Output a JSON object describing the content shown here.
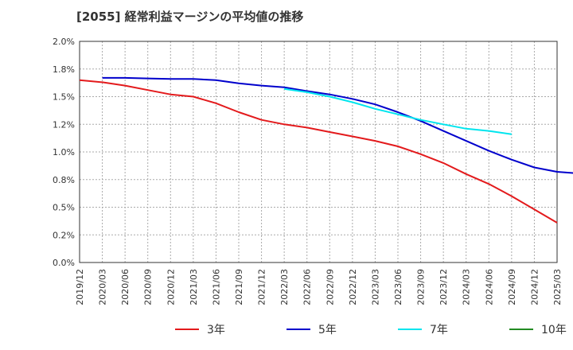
{
  "chart_data": {
    "type": "line",
    "title": "[2055]  経常利益マージンの平均値の推移",
    "xlabel": "",
    "ylabel": "",
    "ylim": [
      0,
      2.0
    ],
    "y_tick_labels": [
      "0.0%",
      "0.2%",
      "0.5%",
      "0.8%",
      "1.0%",
      "1.2%",
      "1.5%",
      "1.8%",
      "2.0%"
    ],
    "x_tick_labels": [
      "2019/12",
      "2020/03",
      "2020/06",
      "2020/09",
      "2020/12",
      "2021/03",
      "2021/06",
      "2021/09",
      "2021/12",
      "2022/03",
      "2022/06",
      "2022/09",
      "2022/12",
      "2023/03",
      "2023/06",
      "2023/09",
      "2023/12",
      "2024/03",
      "2024/06",
      "2024/09",
      "2024/12",
      "2025/03"
    ],
    "grid": true,
    "legend_position": "bottom",
    "series": [
      {
        "name": "3年",
        "color": "#e31a1c",
        "points": [
          [
            "2019/12",
            1.65
          ],
          [
            "2020/03",
            1.63
          ],
          [
            "2020/06",
            1.6
          ],
          [
            "2020/09",
            1.56
          ],
          [
            "2020/12",
            1.52
          ],
          [
            "2021/03",
            1.5
          ],
          [
            "2021/06",
            1.44
          ],
          [
            "2021/09",
            1.36
          ],
          [
            "2021/12",
            1.29
          ],
          [
            "2022/03",
            1.25
          ],
          [
            "2022/06",
            1.22
          ],
          [
            "2022/09",
            1.18
          ],
          [
            "2022/12",
            1.14
          ],
          [
            "2023/03",
            1.1
          ],
          [
            "2023/06",
            1.05
          ],
          [
            "2023/09",
            0.98
          ],
          [
            "2023/12",
            0.9
          ],
          [
            "2024/03",
            0.8
          ],
          [
            "2024/06",
            0.71
          ],
          [
            "2024/09",
            0.6
          ],
          [
            "2024/12",
            0.48
          ],
          [
            "2025/03",
            0.36
          ]
        ]
      },
      {
        "name": "5年",
        "color": "#0000cc",
        "points": [
          [
            "2020/03",
            1.67
          ],
          [
            "2020/06",
            1.67
          ],
          [
            "2020/09",
            1.665
          ],
          [
            "2020/12",
            1.66
          ],
          [
            "2021/03",
            1.66
          ],
          [
            "2021/06",
            1.65
          ],
          [
            "2021/09",
            1.62
          ],
          [
            "2021/12",
            1.6
          ],
          [
            "2022/03",
            1.585
          ],
          [
            "2022/06",
            1.55
          ],
          [
            "2022/09",
            1.52
          ],
          [
            "2022/12",
            1.48
          ],
          [
            "2023/03",
            1.43
          ],
          [
            "2023/06",
            1.36
          ],
          [
            "2023/09",
            1.28
          ],
          [
            "2023/12",
            1.19
          ],
          [
            "2024/03",
            1.1
          ],
          [
            "2024/06",
            1.01
          ],
          [
            "2024/09",
            0.93
          ],
          [
            "2024/12",
            0.86
          ],
          [
            "2025/03",
            0.82
          ],
          [
            "2025/06",
            0.805
          ]
        ]
      },
      {
        "name": "7年",
        "color": "#00e5ee",
        "points": [
          [
            "2022/03",
            1.57
          ],
          [
            "2022/06",
            1.54
          ],
          [
            "2022/09",
            1.5
          ],
          [
            "2022/12",
            1.45
          ],
          [
            "2023/03",
            1.39
          ],
          [
            "2023/06",
            1.34
          ],
          [
            "2023/09",
            1.29
          ],
          [
            "2023/12",
            1.25
          ],
          [
            "2024/03",
            1.21
          ],
          [
            "2024/06",
            1.19
          ],
          [
            "2024/09",
            1.16
          ]
        ]
      },
      {
        "name": "10年",
        "color": "#228b22",
        "points": []
      }
    ]
  }
}
